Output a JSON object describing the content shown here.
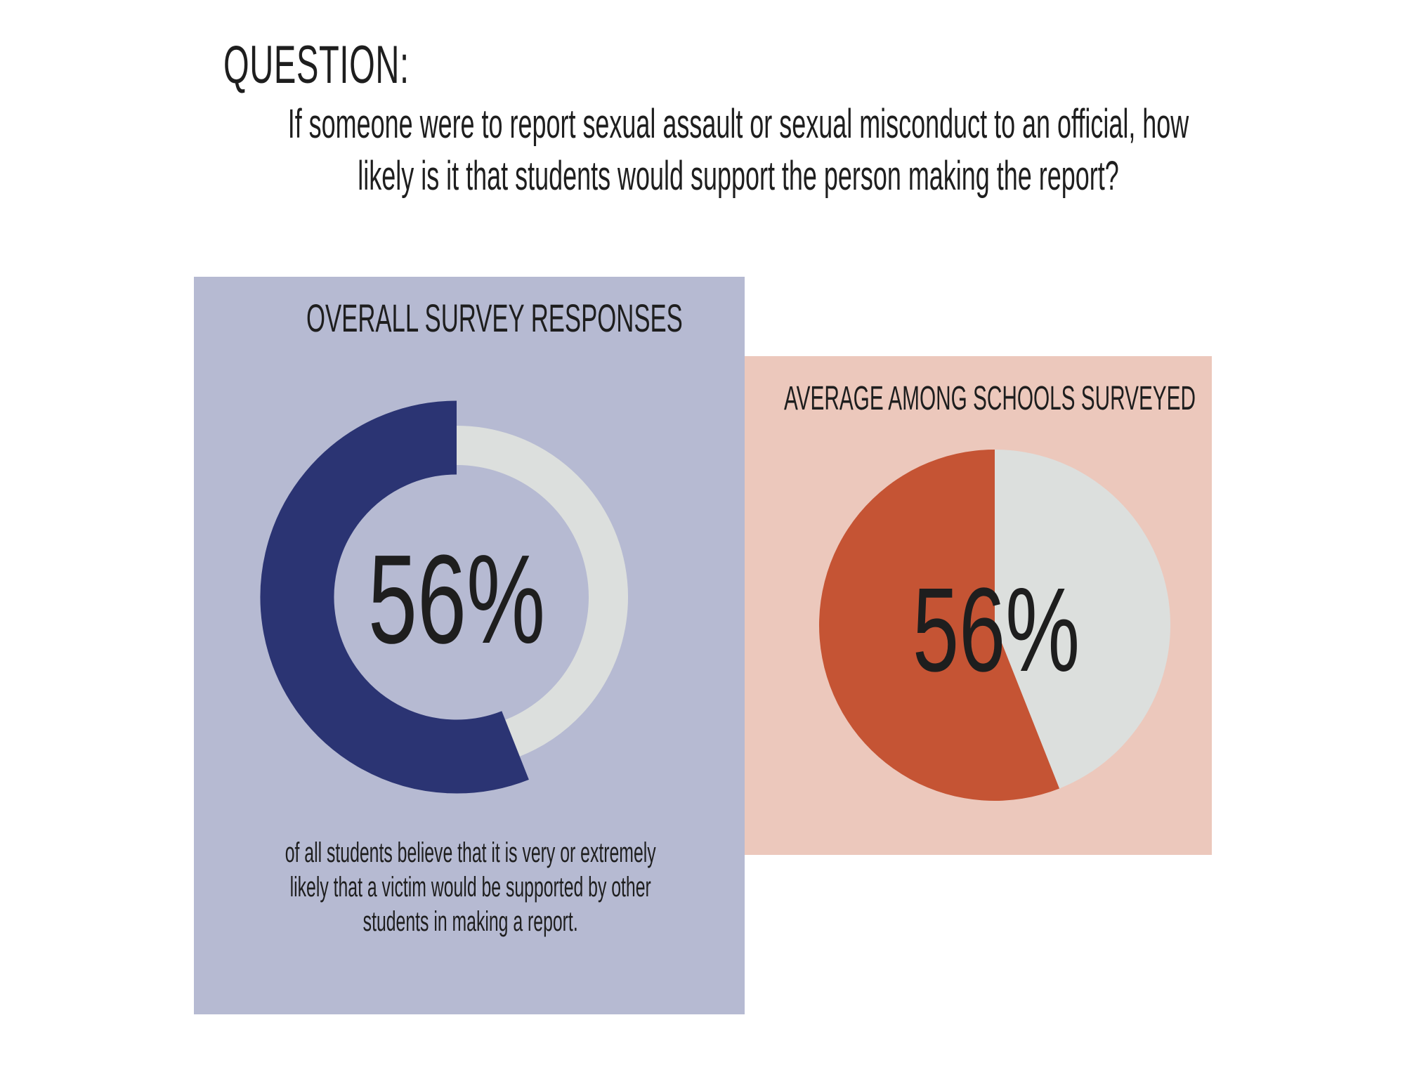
{
  "question_label": "QUESTION:",
  "question_text": "If someone were to report sexual assault or sexual misconduct to an official, how likely is it that students would support the person making the report?",
  "caption": "of all students believe that it is very or extremely likely that a victim would be supported by other students in making a report.",
  "colors": {
    "left_panel": "#b6bad2",
    "right_panel": "#ecc8bc",
    "overall_arc": "#2b3473",
    "average_slice": "#c55434",
    "remainder": "#dcdfdd"
  },
  "chart_data": [
    {
      "type": "pie",
      "variant": "donut",
      "title": "OVERALL SURVEY RESPONSES",
      "center_label": "56%",
      "values": [
        56,
        44
      ]
    },
    {
      "type": "pie",
      "title": "AVERAGE AMONG SCHOOLS SURVEYED",
      "center_label": "56%",
      "values": [
        56,
        44
      ]
    }
  ]
}
